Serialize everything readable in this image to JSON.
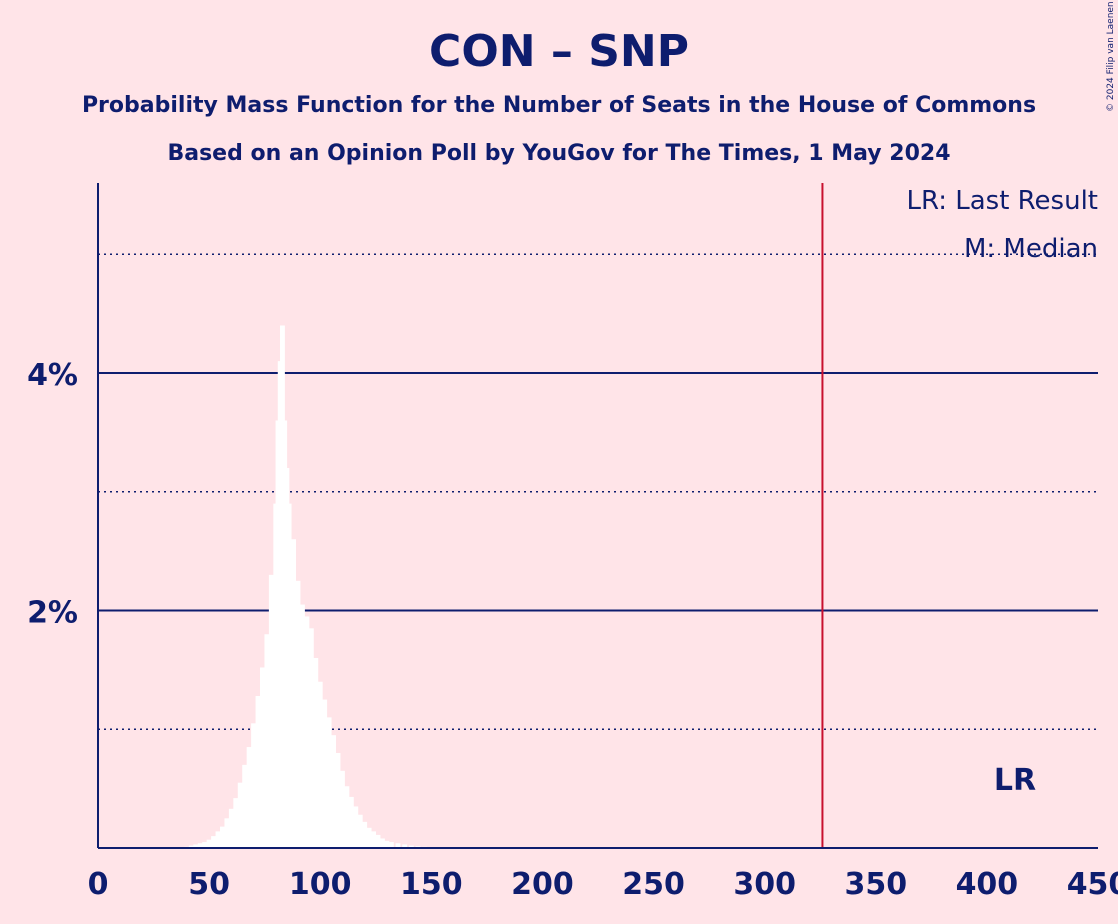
{
  "chart_data": {
    "type": "bar",
    "title": "CON – SNP",
    "subtitle": "Probability Mass Function for the Number of Seats in the House of Commons",
    "subtitle2": "Based on an Opinion Poll by YouGov for The Times, 1 May 2024",
    "copyright": "© 2024 Filip van Laenen",
    "legend": [
      "LR: Last Result",
      "M: Median"
    ],
    "last_result_label": "LR",
    "last_result": 326,
    "median": 83,
    "xlim": [
      0,
      450
    ],
    "ylim": [
      0,
      5.6
    ],
    "x_ticks": [
      0,
      50,
      100,
      150,
      200,
      250,
      300,
      350,
      400,
      450
    ],
    "x_tick_labels": [
      "0",
      "50",
      "100",
      "150",
      "200",
      "250",
      "300",
      "350",
      "400",
      "450"
    ],
    "y_major_ticks": [
      2,
      4
    ],
    "y_tick_labels": [
      "2%",
      "4%"
    ],
    "y_minor_gridlines": [
      1,
      3,
      5
    ],
    "grid": true,
    "legend_position": "top-right",
    "colors": {
      "background": "#ffe4e8",
      "text": "#0e1d6e",
      "axis": "#0e1d6e",
      "bars": "#ffffff",
      "last_result_line": "#c8102e"
    },
    "seats": [
      40,
      42,
      44,
      46,
      48,
      50,
      52,
      54,
      56,
      58,
      60,
      62,
      64,
      66,
      68,
      70,
      72,
      74,
      76,
      78,
      80,
      81,
      82,
      83,
      84,
      85,
      86,
      88,
      90,
      92,
      94,
      96,
      98,
      100,
      102,
      104,
      106,
      108,
      110,
      112,
      114,
      116,
      118,
      120,
      122,
      124,
      126,
      128,
      130,
      132,
      135,
      138,
      141,
      144,
      147,
      150,
      155,
      160
    ],
    "values": [
      0.01,
      0.02,
      0.03,
      0.04,
      0.05,
      0.07,
      0.1,
      0.14,
      0.18,
      0.25,
      0.33,
      0.42,
      0.55,
      0.7,
      0.85,
      1.05,
      1.28,
      1.52,
      1.8,
      2.3,
      2.9,
      3.6,
      4.1,
      4.4,
      3.6,
      3.2,
      2.9,
      2.6,
      2.25,
      2.05,
      1.95,
      1.85,
      1.6,
      1.4,
      1.25,
      1.1,
      0.95,
      0.8,
      0.65,
      0.52,
      0.43,
      0.35,
      0.28,
      0.22,
      0.17,
      0.14,
      0.11,
      0.08,
      0.06,
      0.05,
      0.04,
      0.03,
      0.02,
      0.015,
      0.01,
      0.008,
      0.005,
      0.003
    ]
  }
}
